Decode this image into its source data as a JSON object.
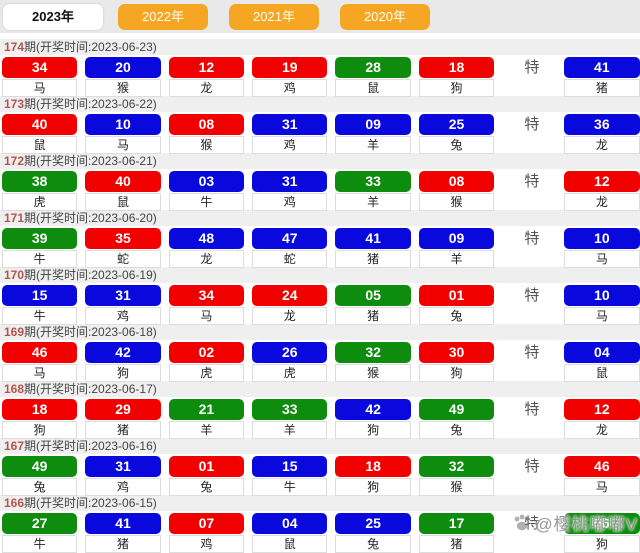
{
  "tabbar": {
    "tabs": [
      {
        "label": "2023年",
        "active": true
      },
      {
        "label": "2022年",
        "active": false
      },
      {
        "label": "2021年",
        "active": false
      },
      {
        "label": "2020年",
        "active": false
      }
    ]
  },
  "labels": {
    "te": "特",
    "header_open": "期(开奖时间:",
    "header_close": ")"
  },
  "colors": {
    "red": "#f20000",
    "blue": "#0909dd",
    "green": "#0d8c0d",
    "tab_bg": "#f5a623",
    "tab_active_bg": "#ffffff",
    "header_period": "#b5544c"
  },
  "draws": [
    {
      "period": "174",
      "date": "2023-06-23",
      "balls": [
        {
          "num": "34",
          "color": "red",
          "zodiac": "马"
        },
        {
          "num": "20",
          "color": "blue",
          "zodiac": "猴"
        },
        {
          "num": "12",
          "color": "red",
          "zodiac": "龙"
        },
        {
          "num": "19",
          "color": "red",
          "zodiac": "鸡"
        },
        {
          "num": "28",
          "color": "green",
          "zodiac": "鼠"
        },
        {
          "num": "18",
          "color": "red",
          "zodiac": "狗"
        }
      ],
      "special": {
        "num": "41",
        "color": "blue",
        "zodiac": "猪"
      }
    },
    {
      "period": "173",
      "date": "2023-06-22",
      "balls": [
        {
          "num": "40",
          "color": "red",
          "zodiac": "鼠"
        },
        {
          "num": "10",
          "color": "blue",
          "zodiac": "马"
        },
        {
          "num": "08",
          "color": "red",
          "zodiac": "猴"
        },
        {
          "num": "31",
          "color": "blue",
          "zodiac": "鸡"
        },
        {
          "num": "09",
          "color": "blue",
          "zodiac": "羊"
        },
        {
          "num": "25",
          "color": "blue",
          "zodiac": "兔"
        }
      ],
      "special": {
        "num": "36",
        "color": "blue",
        "zodiac": "龙"
      }
    },
    {
      "period": "172",
      "date": "2023-06-21",
      "balls": [
        {
          "num": "38",
          "color": "green",
          "zodiac": "虎"
        },
        {
          "num": "40",
          "color": "red",
          "zodiac": "鼠"
        },
        {
          "num": "03",
          "color": "blue",
          "zodiac": "牛"
        },
        {
          "num": "31",
          "color": "blue",
          "zodiac": "鸡"
        },
        {
          "num": "33",
          "color": "green",
          "zodiac": "羊"
        },
        {
          "num": "08",
          "color": "red",
          "zodiac": "猴"
        }
      ],
      "special": {
        "num": "12",
        "color": "red",
        "zodiac": "龙"
      }
    },
    {
      "period": "171",
      "date": "2023-06-20",
      "balls": [
        {
          "num": "39",
          "color": "green",
          "zodiac": "牛"
        },
        {
          "num": "35",
          "color": "red",
          "zodiac": "蛇"
        },
        {
          "num": "48",
          "color": "blue",
          "zodiac": "龙"
        },
        {
          "num": "47",
          "color": "blue",
          "zodiac": "蛇"
        },
        {
          "num": "41",
          "color": "blue",
          "zodiac": "猪"
        },
        {
          "num": "09",
          "color": "blue",
          "zodiac": "羊"
        }
      ],
      "special": {
        "num": "10",
        "color": "blue",
        "zodiac": "马"
      }
    },
    {
      "period": "170",
      "date": "2023-06-19",
      "balls": [
        {
          "num": "15",
          "color": "blue",
          "zodiac": "牛"
        },
        {
          "num": "31",
          "color": "blue",
          "zodiac": "鸡"
        },
        {
          "num": "34",
          "color": "red",
          "zodiac": "马"
        },
        {
          "num": "24",
          "color": "red",
          "zodiac": "龙"
        },
        {
          "num": "05",
          "color": "green",
          "zodiac": "猪"
        },
        {
          "num": "01",
          "color": "red",
          "zodiac": "兔"
        }
      ],
      "special": {
        "num": "10",
        "color": "blue",
        "zodiac": "马"
      }
    },
    {
      "period": "169",
      "date": "2023-06-18",
      "balls": [
        {
          "num": "46",
          "color": "red",
          "zodiac": "马"
        },
        {
          "num": "42",
          "color": "blue",
          "zodiac": "狗"
        },
        {
          "num": "02",
          "color": "red",
          "zodiac": "虎"
        },
        {
          "num": "26",
          "color": "blue",
          "zodiac": "虎"
        },
        {
          "num": "32",
          "color": "green",
          "zodiac": "猴"
        },
        {
          "num": "30",
          "color": "red",
          "zodiac": "狗"
        }
      ],
      "special": {
        "num": "04",
        "color": "blue",
        "zodiac": "鼠"
      }
    },
    {
      "period": "168",
      "date": "2023-06-17",
      "balls": [
        {
          "num": "18",
          "color": "red",
          "zodiac": "狗"
        },
        {
          "num": "29",
          "color": "red",
          "zodiac": "猪"
        },
        {
          "num": "21",
          "color": "green",
          "zodiac": "羊"
        },
        {
          "num": "33",
          "color": "green",
          "zodiac": "羊"
        },
        {
          "num": "42",
          "color": "blue",
          "zodiac": "狗"
        },
        {
          "num": "49",
          "color": "green",
          "zodiac": "兔"
        }
      ],
      "special": {
        "num": "12",
        "color": "red",
        "zodiac": "龙"
      }
    },
    {
      "period": "167",
      "date": "2023-06-16",
      "balls": [
        {
          "num": "49",
          "color": "green",
          "zodiac": "兔"
        },
        {
          "num": "31",
          "color": "blue",
          "zodiac": "鸡"
        },
        {
          "num": "01",
          "color": "red",
          "zodiac": "兔"
        },
        {
          "num": "15",
          "color": "blue",
          "zodiac": "牛"
        },
        {
          "num": "18",
          "color": "red",
          "zodiac": "狗"
        },
        {
          "num": "32",
          "color": "green",
          "zodiac": "猴"
        }
      ],
      "special": {
        "num": "46",
        "color": "red",
        "zodiac": "马"
      }
    },
    {
      "period": "166",
      "date": "2023-06-15",
      "balls": [
        {
          "num": "27",
          "color": "green",
          "zodiac": "牛"
        },
        {
          "num": "41",
          "color": "blue",
          "zodiac": "猪"
        },
        {
          "num": "07",
          "color": "red",
          "zodiac": "鸡"
        },
        {
          "num": "04",
          "color": "blue",
          "zodiac": "鼠"
        },
        {
          "num": "25",
          "color": "blue",
          "zodiac": "兔"
        },
        {
          "num": "17",
          "color": "green",
          "zodiac": "猪"
        }
      ],
      "special": {
        "num": "06",
        "color": "green",
        "zodiac": "狗"
      }
    }
  ],
  "watermark": {
    "icon": "paw-icon",
    "text": "@樱桃嘟嘟V"
  }
}
